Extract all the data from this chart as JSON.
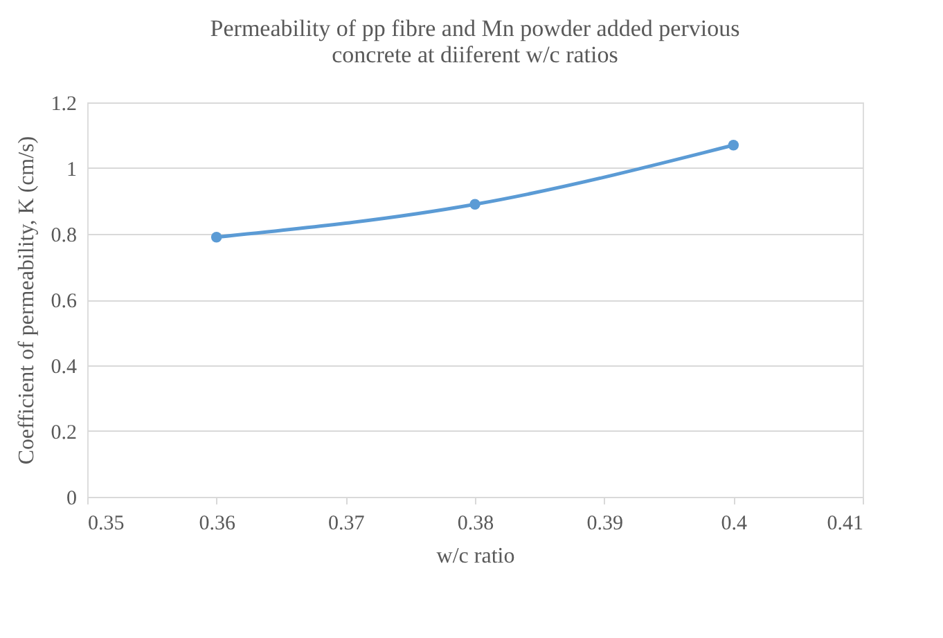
{
  "chart_data": {
    "type": "line",
    "title": "Permeability of pp fibre and Mn powder added pervious concrete at diiferent w/c ratios",
    "xlabel": "w/c ratio",
    "ylabel": "Coefficient of permeability, K (cm/s)",
    "x": [
      0.36,
      0.38,
      0.4
    ],
    "series": [
      {
        "color": "#5b9bd5",
        "values": [
          0.79,
          0.89,
          1.07
        ]
      }
    ],
    "xlim": [
      0.35,
      0.41
    ],
    "xticks": [
      0.35,
      0.36,
      0.37,
      0.38,
      0.39,
      0.4,
      0.41
    ],
    "ylim": [
      0,
      1.2
    ],
    "yticks": [
      0,
      0.2,
      0.4,
      0.6,
      0.8,
      1,
      1.2
    ],
    "grid": "y",
    "marker": "circle",
    "line_style": "solid"
  }
}
